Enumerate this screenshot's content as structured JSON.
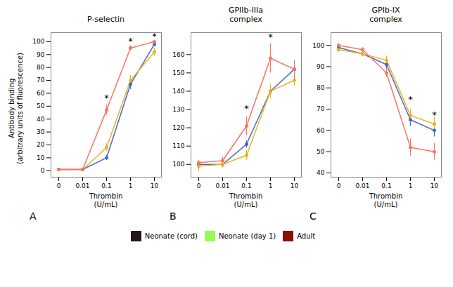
{
  "chart_data": [
    {
      "type": "line",
      "title": "P-selectin",
      "panel_label": "A",
      "xlabel": "Thrombin\n(U/mL)",
      "ylabel": "Antibody binding\n(arbitrary units of fluorescence)",
      "categories": [
        "0",
        "0.01",
        "0.1",
        "1",
        "10"
      ],
      "series": [
        {
          "name": "Neonate (cord)",
          "marker": "circle",
          "values": [
            1,
            1,
            10,
            67,
            98
          ],
          "errors": [
            0.5,
            0.5,
            2,
            4,
            2
          ]
        },
        {
          "name": "Neonate (day 1)",
          "marker": "circle",
          "values": [
            1,
            1,
            18,
            70,
            92
          ],
          "errors": [
            0.5,
            0.5,
            3,
            4,
            3
          ]
        },
        {
          "name": "Adult",
          "marker": "circle",
          "values": [
            1,
            1,
            47,
            95,
            100
          ],
          "errors": [
            0.5,
            0.5,
            4,
            2,
            1
          ]
        }
      ],
      "ylim": [
        -5,
        107
      ],
      "yticks": [
        0,
        10,
        20,
        30,
        40,
        50,
        60,
        70,
        80,
        90,
        100
      ],
      "annotations": [
        {
          "text": "*",
          "x": "0.1",
          "y": 54
        },
        {
          "text": "*",
          "x": "1",
          "y": 98
        },
        {
          "text": "*",
          "x": "10",
          "y": 102
        }
      ],
      "legend": "bottom"
    },
    {
      "type": "line",
      "title": "GPIIb-IIIa\ncomplex",
      "panel_label": "B",
      "xlabel": "Thrombin\n(U/mL)",
      "categories": [
        "0",
        "0.01",
        "0.1",
        "1",
        "10"
      ],
      "series": [
        {
          "name": "Neonate (cord)",
          "marker": "circle",
          "values": [
            100,
            100,
            111,
            140,
            152
          ],
          "errors": [
            2,
            2,
            2,
            4,
            4
          ]
        },
        {
          "name": "Neonate (day 1)",
          "marker": "circle",
          "values": [
            99,
            100,
            105,
            140,
            146
          ],
          "errors": [
            3,
            2,
            3,
            4,
            3
          ]
        },
        {
          "name": "Adult",
          "marker": "circle",
          "values": [
            101,
            102,
            121,
            158,
            152
          ],
          "errors": [
            1,
            2,
            5,
            8,
            5
          ]
        }
      ],
      "ylim": [
        93,
        172
      ],
      "yticks": [
        100,
        110,
        120,
        130,
        140,
        150,
        160
      ],
      "annotations": [
        {
          "text": "*",
          "x": "0.1",
          "y": 129
        },
        {
          "text": "*",
          "x": "1",
          "y": 168
        }
      ]
    },
    {
      "type": "line",
      "title": "GPIb-IX\ncomplex",
      "panel_label": "C",
      "xlabel": "Thrombin\n(U/mL)",
      "categories": [
        "0",
        "0.01",
        "0.1",
        "1",
        "10"
      ],
      "series": [
        {
          "name": "Neonate (cord)",
          "marker": "circle",
          "values": [
            99,
            96,
            91,
            65,
            60
          ],
          "errors": [
            1,
            1,
            2,
            3,
            3
          ]
        },
        {
          "name": "Neonate (day 1)",
          "marker": "circle",
          "values": [
            98,
            96,
            93,
            67,
            63
          ],
          "errors": [
            1,
            1,
            2,
            3,
            3
          ]
        },
        {
          "name": "Adult",
          "marker": "circle",
          "values": [
            100,
            98,
            87,
            52,
            50
          ],
          "errors": [
            1,
            1,
            2,
            4,
            4
          ]
        }
      ],
      "ylim": [
        38,
        106
      ],
      "yticks": [
        40,
        50,
        60,
        70,
        80,
        90,
        100
      ],
      "annotations": [
        {
          "text": "*",
          "x": "1",
          "y": 73
        },
        {
          "text": "*",
          "x": "10",
          "y": 66
        }
      ]
    }
  ]
}
